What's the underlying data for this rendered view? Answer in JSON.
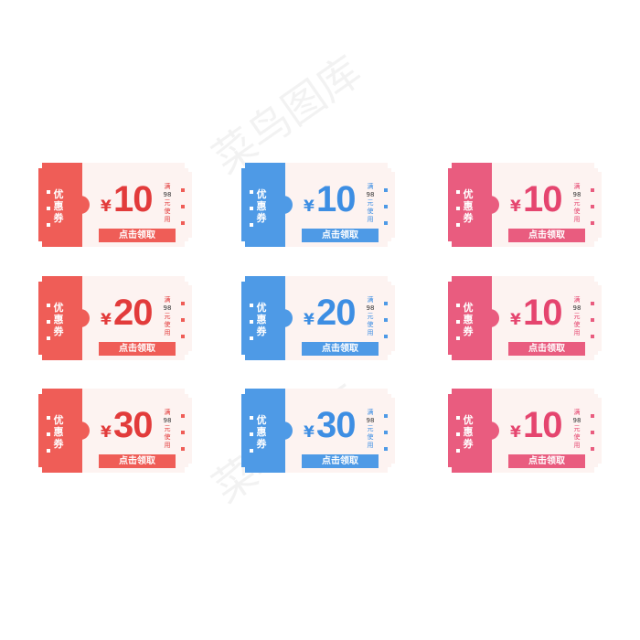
{
  "watermark": "菜鸟图库",
  "colors": {
    "red": "#ef5d57",
    "blue": "#4e9ae6",
    "pink": "#e95c7f",
    "red_text": "#e23b3b",
    "blue_text": "#3d8ee3",
    "pink_text": "#e5456f"
  },
  "coupons": [
    {
      "label": "优惠券",
      "currency": "¥",
      "amount": "10",
      "condition_prefix": "满",
      "condition_value": "98",
      "condition_suffix": "元使用",
      "button": "点击领取",
      "theme": "red"
    },
    {
      "label": "优惠券",
      "currency": "¥",
      "amount": "10",
      "condition_prefix": "满",
      "condition_value": "98",
      "condition_suffix": "元使用",
      "button": "点击领取",
      "theme": "blue"
    },
    {
      "label": "优惠券",
      "currency": "¥",
      "amount": "10",
      "condition_prefix": "满",
      "condition_value": "98",
      "condition_suffix": "元使用",
      "button": "点击领取",
      "theme": "pink"
    },
    {
      "label": "优惠券",
      "currency": "¥",
      "amount": "20",
      "condition_prefix": "满",
      "condition_value": "98",
      "condition_suffix": "元使用",
      "button": "点击领取",
      "theme": "red"
    },
    {
      "label": "优惠券",
      "currency": "¥",
      "amount": "20",
      "condition_prefix": "满",
      "condition_value": "98",
      "condition_suffix": "元使用",
      "button": "点击领取",
      "theme": "blue"
    },
    {
      "label": "优惠券",
      "currency": "¥",
      "amount": "10",
      "condition_prefix": "满",
      "condition_value": "98",
      "condition_suffix": "元使用",
      "button": "点击领取",
      "theme": "pink"
    },
    {
      "label": "优惠券",
      "currency": "¥",
      "amount": "30",
      "condition_prefix": "满",
      "condition_value": "98",
      "condition_suffix": "元使用",
      "button": "点击领取",
      "theme": "red"
    },
    {
      "label": "优惠券",
      "currency": "¥",
      "amount": "30",
      "condition_prefix": "满",
      "condition_value": "98",
      "condition_suffix": "元使用",
      "button": "点击领取",
      "theme": "blue"
    },
    {
      "label": "优惠券",
      "currency": "¥",
      "amount": "10",
      "condition_prefix": "满",
      "condition_value": "98",
      "condition_suffix": "元使用",
      "button": "点击领取",
      "theme": "pink"
    }
  ]
}
